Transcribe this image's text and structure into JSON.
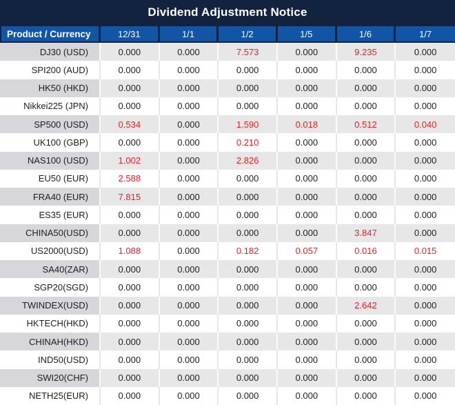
{
  "title": "Dividend Adjustment Notice",
  "colors": {
    "navy": "#122340",
    "header_blue": "#1355a5",
    "stripe_label": "#d7d7db",
    "stripe_value": "#e8e7e7",
    "sep_striped": "#fbfbfb",
    "sep_plain": "#e6e6e6",
    "red": "#ed1c24",
    "text": "#1d1d1f"
  },
  "table": {
    "product_header": "Product / Currency",
    "date_headers": [
      "12/31",
      "1/1",
      "1/2",
      "1/5",
      "1/6",
      "1/7"
    ],
    "zero_value": "0.000",
    "rows": [
      {
        "product": "DJ30 (USD)",
        "values": [
          "0.000",
          "0.000",
          "7.573",
          "0.000",
          "9.235",
          "0.000"
        ]
      },
      {
        "product": "SPI200 (AUD)",
        "values": [
          "0.000",
          "0.000",
          "0.000",
          "0.000",
          "0.000",
          "0.000"
        ]
      },
      {
        "product": "HK50 (HKD)",
        "values": [
          "0.000",
          "0.000",
          "0.000",
          "0.000",
          "0.000",
          "0.000"
        ]
      },
      {
        "product": "Nikkei225 (JPN)",
        "values": [
          "0.000",
          "0.000",
          "0.000",
          "0.000",
          "0.000",
          "0.000"
        ]
      },
      {
        "product": "SP500 (USD)",
        "values": [
          "0.534",
          "0.000",
          "1.590",
          "0.018",
          "0.512",
          "0.040"
        ]
      },
      {
        "product": "UK100 (GBP)",
        "values": [
          "0.000",
          "0.000",
          "0.210",
          "0.000",
          "0.000",
          "0.000"
        ]
      },
      {
        "product": "NAS100 (USD)",
        "values": [
          "1.002",
          "0.000",
          "2.826",
          "0.000",
          "0.000",
          "0.000"
        ]
      },
      {
        "product": "EU50 (EUR)",
        "values": [
          "2.588",
          "0.000",
          "0.000",
          "0.000",
          "0.000",
          "0.000"
        ]
      },
      {
        "product": "FRA40 (EUR)",
        "values": [
          "7.815",
          "0.000",
          "0.000",
          "0.000",
          "0.000",
          "0.000"
        ]
      },
      {
        "product": "ES35 (EUR)",
        "values": [
          "0.000",
          "0.000",
          "0.000",
          "0.000",
          "0.000",
          "0.000"
        ]
      },
      {
        "product": "CHINA50(USD)",
        "values": [
          "0.000",
          "0.000",
          "0.000",
          "0.000",
          "3.847",
          "0.000"
        ]
      },
      {
        "product": "US2000(USD)",
        "values": [
          "1.088",
          "0.000",
          "0.182",
          "0.057",
          "0.016",
          "0.015"
        ]
      },
      {
        "product": "SA40(ZAR)",
        "values": [
          "0.000",
          "0.000",
          "0.000",
          "0.000",
          "0.000",
          "0.000"
        ]
      },
      {
        "product": "SGP20(SGD)",
        "values": [
          "0.000",
          "0.000",
          "0.000",
          "0.000",
          "0.000",
          "0.000"
        ]
      },
      {
        "product": "TWINDEX(USD)",
        "values": [
          "0.000",
          "0.000",
          "0.000",
          "0.000",
          "2.642",
          "0.000"
        ]
      },
      {
        "product": "HKTECH(HKD)",
        "values": [
          "0.000",
          "0.000",
          "0.000",
          "0.000",
          "0.000",
          "0.000"
        ]
      },
      {
        "product": "CHINAH(HKD)",
        "values": [
          "0.000",
          "0.000",
          "0.000",
          "0.000",
          "0.000",
          "0.000"
        ]
      },
      {
        "product": "IND50(USD)",
        "values": [
          "0.000",
          "0.000",
          "0.000",
          "0.000",
          "0.000",
          "0.000"
        ]
      },
      {
        "product": "SWI20(CHF)",
        "values": [
          "0.000",
          "0.000",
          "0.000",
          "0.000",
          "0.000",
          "0.000"
        ]
      },
      {
        "product": "NETH25(EUR)",
        "values": [
          "0.000",
          "0.000",
          "0.000",
          "0.000",
          "0.000",
          "0.000"
        ]
      }
    ]
  }
}
